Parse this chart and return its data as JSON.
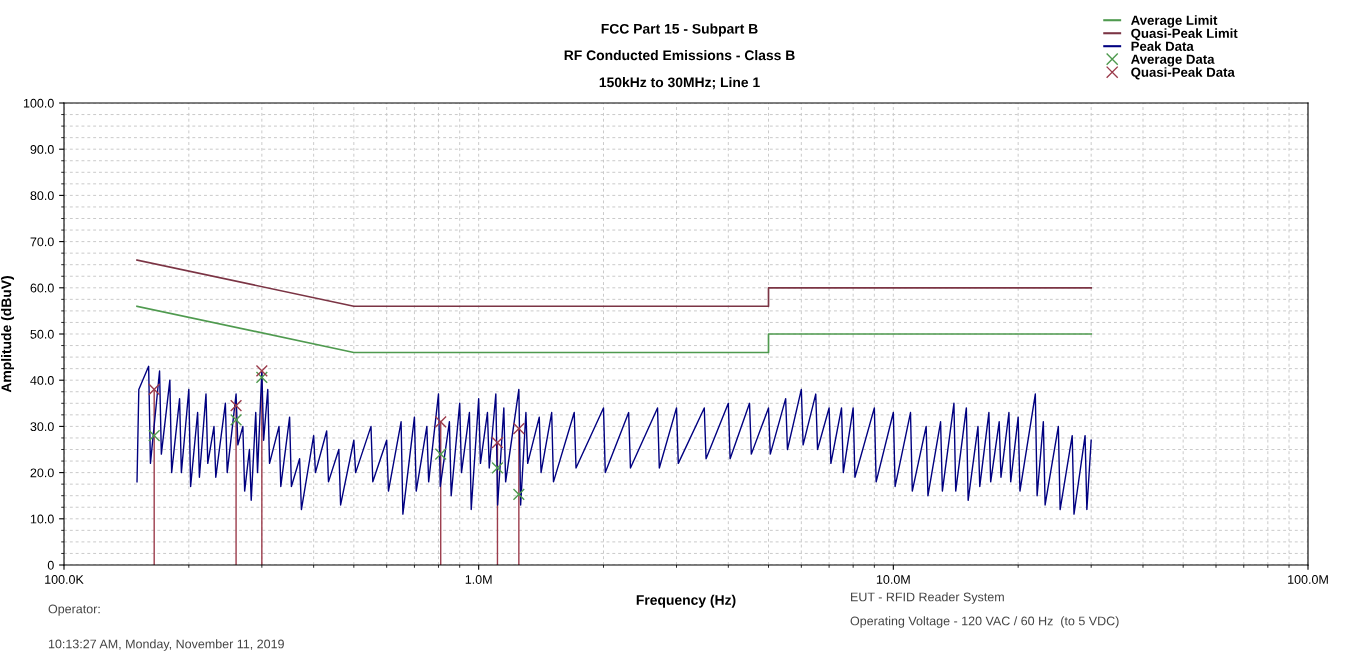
{
  "chart_data": {
    "type": "line",
    "title": "FCC Part 15 - Subpart B",
    "subtitle": "RF Conducted Emissions - Class B\n150kHz to 30MHz; Line 1",
    "xlabel": "Frequency (Hz)",
    "ylabel": "Amplitude (dBuV)",
    "log": "x",
    "xlim": [
      100000,
      100000000
    ],
    "ylim": [
      0,
      100
    ],
    "xticks": [
      {
        "value": 100000,
        "label": "100.0K"
      },
      {
        "value": 1000000,
        "label": "1.0M"
      },
      {
        "value": 10000000,
        "label": "10.0M"
      },
      {
        "value": 100000000,
        "label": "100.0M"
      }
    ],
    "yticks": [
      {
        "value": 0,
        "label": "0"
      },
      {
        "value": 10,
        "label": "10.0"
      },
      {
        "value": 20,
        "label": "20.0"
      },
      {
        "value": 30,
        "label": "30.0"
      },
      {
        "value": 40,
        "label": "40.0"
      },
      {
        "value": 50,
        "label": "50.0"
      },
      {
        "value": 60,
        "label": "60.0"
      },
      {
        "value": 70,
        "label": "70.0"
      },
      {
        "value": 80,
        "label": "80.0"
      },
      {
        "value": 90,
        "label": "90.0"
      },
      {
        "value": 100,
        "label": "100.0"
      }
    ],
    "grid": true,
    "legend": "top right",
    "series": [
      {
        "name": "Average Limit",
        "color": "#4f9a4f",
        "marker": "none",
        "line_style": "solid",
        "x": [
          150000,
          500000,
          5000000,
          5000000,
          30000000
        ],
        "values": [
          56,
          46,
          46,
          50,
          50
        ]
      },
      {
        "name": "Quasi-Peak Limit",
        "color": "#7b3444",
        "marker": "none",
        "line_style": "solid",
        "x": [
          150000,
          500000,
          5000000,
          5000000,
          30000000
        ],
        "values": [
          66,
          56,
          56,
          60,
          60
        ]
      },
      {
        "name": "Peak Data",
        "color": "#000080",
        "marker": "none",
        "line_style": "solid",
        "x": [
          150000,
          151500,
          160000,
          161600,
          170000,
          171700,
          180000,
          181800,
          190000,
          191900,
          200000,
          202000,
          210000,
          212100,
          220000,
          222200,
          230000,
          232300,
          245000,
          247500,
          260000,
          262600,
          270000,
          272700,
          280000,
          282800,
          290000,
          292900,
          300000,
          303000,
          310000,
          313100,
          330000,
          333300,
          350000,
          353500,
          370000,
          373700,
          400000,
          404000,
          430000,
          434300,
          460000,
          464600,
          500000,
          505000,
          550000,
          555500,
          600000,
          606000,
          650000,
          656500,
          700000,
          707000,
          750000,
          757500,
          800000,
          808000,
          850000,
          858500,
          900000,
          909000,
          950000,
          959500,
          1000000,
          1010000,
          1050000,
          1060500,
          1100000,
          1111000,
          1150000,
          1161500,
          1250000,
          1262500,
          1300000,
          1313000,
          1400000,
          1414000,
          1500000,
          1515000,
          1700000,
          1717000,
          2000000,
          2020000,
          2300000,
          2323000,
          2700000,
          2727000,
          3000000,
          3030000,
          3500000,
          3535000,
          4000000,
          4040000,
          4500000,
          4545000,
          5000000,
          5050000,
          5500000,
          5555000,
          6000000,
          6060000,
          6500000,
          6565000,
          7000000,
          7070000,
          7500000,
          7575000,
          8000000,
          8080000,
          9000000,
          9090000,
          10000000,
          10100000,
          11000000,
          11110000,
          12000000,
          12120000,
          13000000,
          13130000,
          14000000,
          14140000,
          15000000,
          15150000,
          16000000,
          16160000,
          17000000,
          17170000,
          18000000,
          18180000,
          19000000,
          19190000,
          20000000,
          20200000,
          22000000,
          22220000,
          23000000,
          23230000,
          25000000,
          25250000,
          27000000,
          27270000,
          29000000,
          29290000,
          30000000
        ],
        "values": [
          18,
          38,
          43,
          22,
          42,
          24,
          40,
          20,
          36,
          20,
          38,
          17,
          33,
          19,
          37,
          22,
          30,
          19,
          35,
          20,
          37,
          26,
          30,
          16,
          25,
          14,
          33,
          20,
          42,
          27,
          38,
          22,
          30,
          17,
          32,
          17,
          23,
          12,
          28,
          20,
          29,
          18,
          25,
          13,
          27,
          20,
          30,
          18,
          27,
          16,
          31,
          11,
          32,
          16,
          30,
          18,
          37,
          17,
          31,
          15,
          35,
          20,
          33,
          12,
          36,
          22,
          33,
          21,
          37,
          13,
          34,
          18,
          38,
          13,
          33,
          22,
          32,
          20,
          33,
          18,
          33,
          21,
          34,
          20,
          33,
          21,
          34,
          21,
          34,
          22,
          34,
          23,
          35,
          23,
          35,
          24,
          34,
          24,
          36,
          25,
          38,
          26,
          37,
          25,
          34,
          22,
          34,
          20,
          34,
          19,
          34,
          18,
          33,
          17,
          33,
          16,
          30,
          15,
          31,
          16,
          35,
          16,
          34,
          14,
          30,
          17,
          33,
          18,
          31,
          19,
          33,
          18,
          32,
          16,
          37,
          15,
          31,
          13,
          30,
          12,
          28,
          11,
          28,
          12,
          27
        ]
      },
      {
        "name": "Average Data",
        "color": "#4f9a4f",
        "type": "scatter",
        "marker": "cross",
        "x": [
          165000,
          260000,
          300000,
          810000,
          1110000,
          1250000
        ],
        "values": [
          28,
          31.4,
          40.6,
          24,
          21,
          15.3
        ]
      },
      {
        "name": "Quasi-Peak Data",
        "color": "#9b3b4b",
        "type": "lollipop",
        "marker": "cross",
        "x": [
          165000,
          260000,
          300000,
          810000,
          1110000,
          1250000
        ],
        "values": [
          38,
          34.5,
          42,
          31,
          26.5,
          29.5
        ]
      }
    ],
    "annotations": [
      "Operator:",
      "10:13:27 AM, Monday, November 11, 2019",
      "EUT - RFID Reader System",
      "Operating Voltage - 120 VAC / 60 Hz  (to 5 VDC)"
    ]
  }
}
